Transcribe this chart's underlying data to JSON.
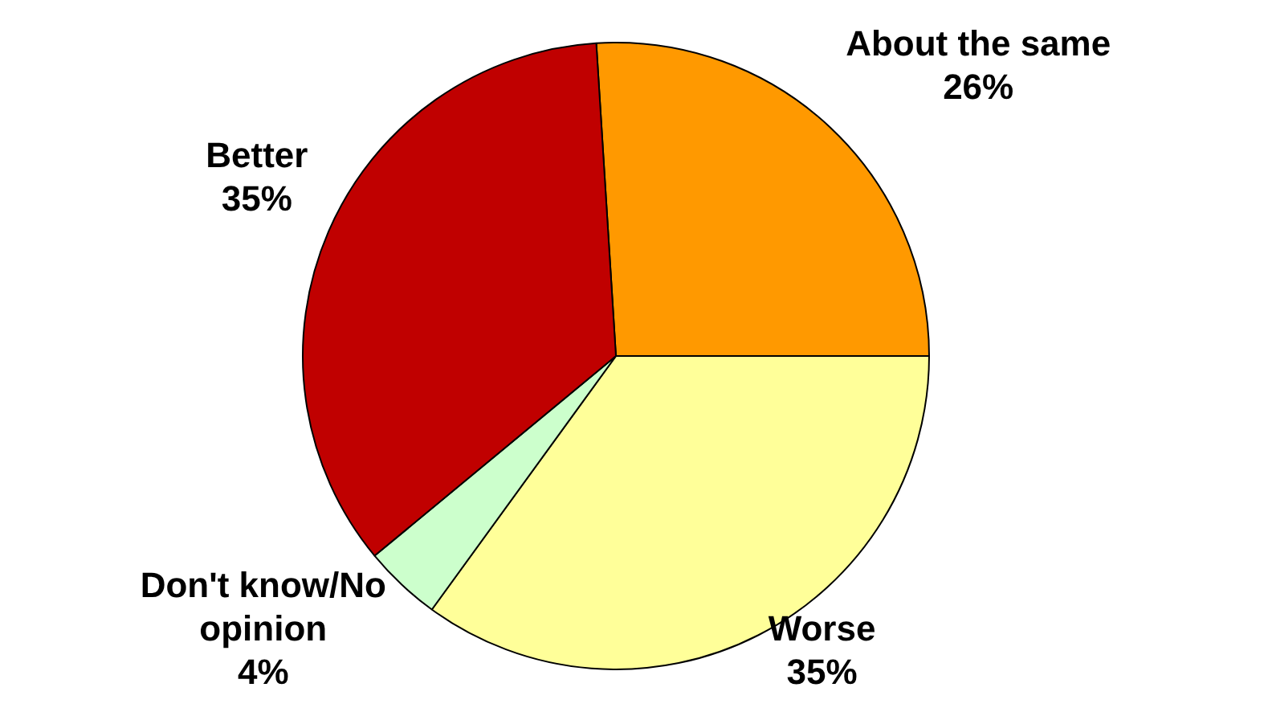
{
  "chart_data": {
    "type": "pie",
    "categories": [
      "About the same",
      "Worse",
      "Don't know/No opinion",
      "Better"
    ],
    "values": [
      26,
      35,
      4,
      35
    ],
    "colors": [
      "#ff9900",
      "#ffff99",
      "#ccffcc",
      "#c00000"
    ],
    "value_labels": [
      "26%",
      "35%",
      "4%",
      "35%"
    ],
    "legend": false
  }
}
